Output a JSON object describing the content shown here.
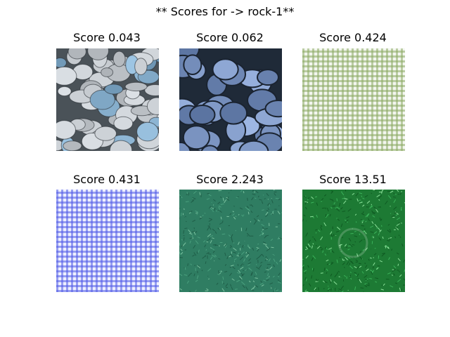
{
  "figure": {
    "title": "** Scores for -> rock-1**"
  },
  "panels": [
    {
      "label": "Score 0.043",
      "texture": "pebbles"
    },
    {
      "label": "Score 0.062",
      "texture": "stone-wall"
    },
    {
      "label": "Score 0.424",
      "texture": "green-gingham"
    },
    {
      "label": "Score 0.431",
      "texture": "blue-gingham"
    },
    {
      "label": "Score 2.243",
      "texture": "grass-teal"
    },
    {
      "label": "Score 13.51",
      "texture": "grass-green"
    }
  ],
  "colors": {
    "pebble": "#aebbc4",
    "stone": "#6f8aa6",
    "gingham_green": "#8caa64",
    "gingham_blue": "#505ae6",
    "grass_teal": "#2f7d62",
    "grass_green": "#1f8a3a"
  }
}
